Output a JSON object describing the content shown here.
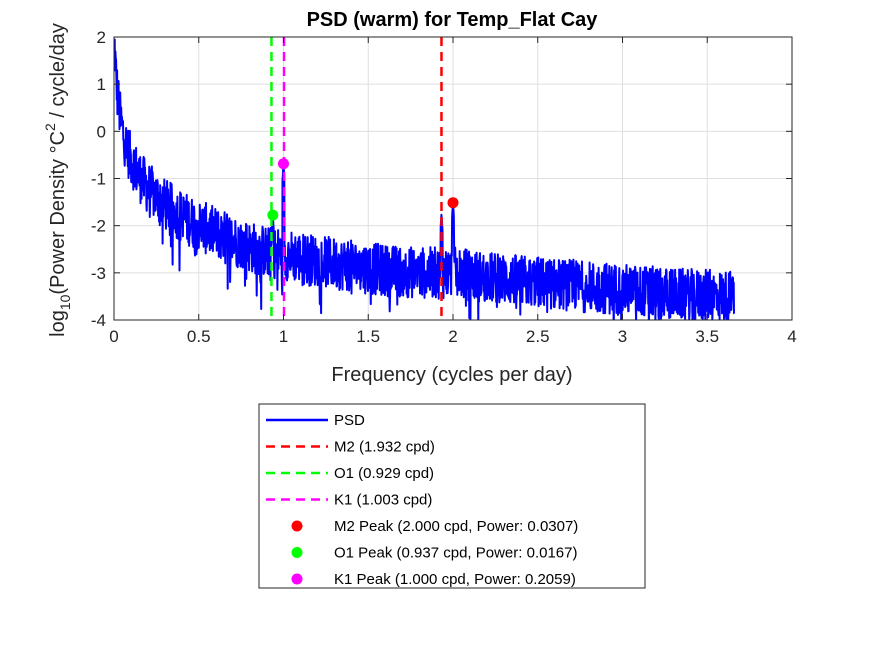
{
  "chart_data": {
    "type": "line",
    "title": "PSD (warm) for Temp_Flat Cay",
    "xlabel": "Frequency (cycles per day)",
    "ylabel_main": "log",
    "ylabel_sub": "10",
    "ylabel_mid": "(Power Density °C",
    "ylabel_sup": "2",
    "ylabel_end": " / cycle/day",
    "xlim": [
      0,
      4
    ],
    "ylim": [
      -4,
      2
    ],
    "xticks": [
      0,
      0.5,
      1,
      1.5,
      2,
      2.5,
      3,
      3.5,
      4
    ],
    "xtick_labels": [
      "0",
      "0.5",
      "1",
      "1.5",
      "2",
      "2.5",
      "3",
      "3.5",
      "4"
    ],
    "yticks": [
      -4,
      -3,
      -2,
      -1,
      0,
      1,
      2
    ],
    "ytick_labels": [
      "-4",
      "-3",
      "-2",
      "-1",
      "0",
      "1",
      "2"
    ],
    "grid": true,
    "psd_series": {
      "name": "PSD",
      "color": "#0000ff",
      "x_range": [
        0.0,
        3.66
      ],
      "baseline": [
        [
          0.005,
          1.75
        ],
        [
          0.01,
          1.3
        ],
        [
          0.02,
          0.8
        ],
        [
          0.04,
          0.2
        ],
        [
          0.07,
          -0.3
        ],
        [
          0.1,
          -0.6
        ],
        [
          0.15,
          -0.95
        ],
        [
          0.2,
          -1.2
        ],
        [
          0.3,
          -1.55
        ],
        [
          0.4,
          -1.8
        ],
        [
          0.5,
          -2.0
        ],
        [
          0.6,
          -2.15
        ],
        [
          0.7,
          -2.3
        ],
        [
          0.8,
          -2.45
        ],
        [
          0.9,
          -2.55
        ],
        [
          1.0,
          -2.6
        ],
        [
          1.2,
          -2.75
        ],
        [
          1.4,
          -2.85
        ],
        [
          1.6,
          -2.95
        ],
        [
          1.8,
          -3.0
        ],
        [
          2.0,
          -3.0
        ],
        [
          2.2,
          -3.1
        ],
        [
          2.5,
          -3.2
        ],
        [
          2.8,
          -3.3
        ],
        [
          3.0,
          -3.35
        ],
        [
          3.3,
          -3.45
        ],
        [
          3.66,
          -3.5
        ]
      ],
      "peaks": [
        {
          "x": 0.937,
          "y": -1.78
        },
        {
          "x": 1.0,
          "y": -0.69
        },
        {
          "x": 1.932,
          "y": -1.75
        },
        {
          "x": 2.0,
          "y": -1.51
        }
      ]
    },
    "tidal_lines": [
      {
        "name": "M2 (1.932 cpd)",
        "x": 1.932,
        "color": "#ff0000"
      },
      {
        "name": "O1 (0.929 cpd)",
        "x": 0.929,
        "color": "#00ff00"
      },
      {
        "name": "K1 (1.003 cpd)",
        "x": 1.003,
        "color": "#ff00ff"
      }
    ],
    "peak_markers": [
      {
        "name": "M2 Peak (2.000 cpd, Power: 0.0307)",
        "x": 2.0,
        "y": -1.513,
        "color": "#ff0000"
      },
      {
        "name": "O1 Peak (0.937 cpd, Power: 0.0167)",
        "x": 0.937,
        "y": -1.777,
        "color": "#00ff00"
      },
      {
        "name": "K1 Peak (1.000 cpd, Power: 0.2059)",
        "x": 1.0,
        "y": -0.686,
        "color": "#ff00ff"
      }
    ],
    "legend_placement": "below-plot"
  }
}
